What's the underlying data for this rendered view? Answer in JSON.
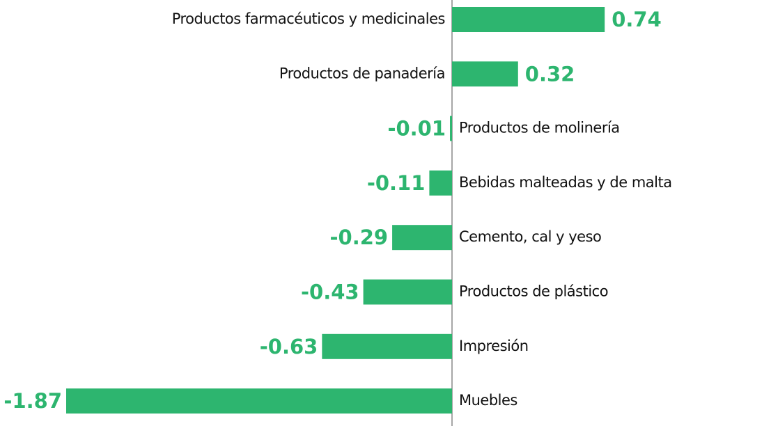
{
  "chart_data": {
    "type": "bar",
    "orientation": "horizontal",
    "color": "#2db56f",
    "categories": [
      "Productos farmacéuticos y medicinales",
      "Productos de panadería",
      "Productos de molinería",
      "Bebidas malteadas y de malta",
      "Cemento, cal y yeso",
      "Productos de plástico",
      "Impresión",
      "Muebles"
    ],
    "values": [
      0.74,
      0.32,
      -0.01,
      -0.11,
      -0.29,
      -0.43,
      -0.63,
      -1.87
    ]
  }
}
